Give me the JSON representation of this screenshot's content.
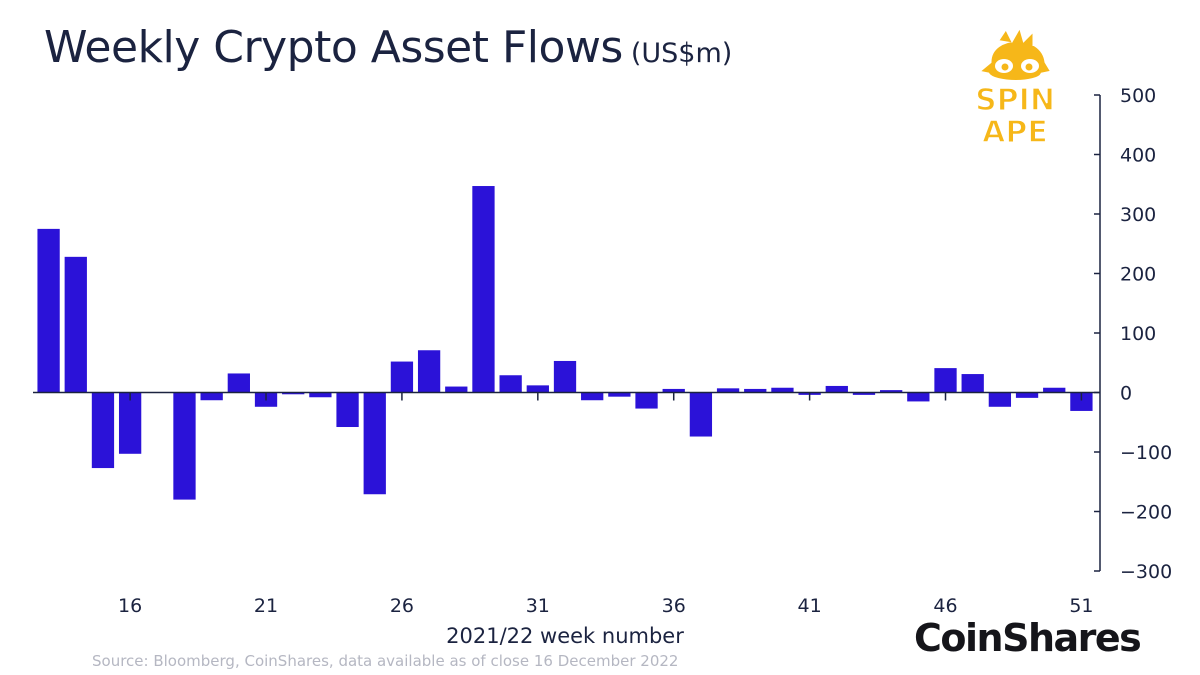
{
  "header": {
    "title": "Weekly Crypto Asset Flows",
    "unit": "(US$m)"
  },
  "watermark": {
    "line1": "SPIN",
    "line2": "APE",
    "color": "#f6b719"
  },
  "footer": {
    "source": "Source: Bloomberg, CoinShares, data available as of close 16 December 2022",
    "brand": "CoinShares"
  },
  "chart_data": {
    "type": "bar",
    "xlabel": "2021/22 week number",
    "ylabel": "",
    "ylim": [
      -300,
      500
    ],
    "yticks": [
      500,
      400,
      300,
      200,
      100,
      0,
      -100,
      -200,
      -300
    ],
    "y_axis_side": "right",
    "grid": false,
    "bar_color": "#2b12d8",
    "categories": [
      13,
      14,
      15,
      16,
      17,
      18,
      19,
      20,
      21,
      22,
      23,
      24,
      25,
      26,
      27,
      28,
      29,
      30,
      31,
      32,
      33,
      34,
      35,
      36,
      37,
      38,
      39,
      40,
      41,
      42,
      43,
      44,
      45,
      46,
      47,
      48,
      49,
      50,
      51
    ],
    "x_tick_labels": [
      "16",
      "21",
      "26",
      "31",
      "36",
      "41",
      "46",
      "51"
    ],
    "x_tick_values": [
      16,
      21,
      26,
      31,
      36,
      41,
      46,
      51
    ],
    "values": [
      275,
      228,
      -127,
      -103,
      0,
      -180,
      -13,
      32,
      -24,
      -3,
      -8,
      -58,
      -171,
      52,
      71,
      10,
      347,
      29,
      12,
      53,
      -13,
      -7,
      -27,
      6,
      -74,
      7,
      6,
      8,
      -4,
      11,
      -4,
      4,
      -15,
      41,
      31,
      -24,
      -9,
      8,
      -31
    ]
  }
}
